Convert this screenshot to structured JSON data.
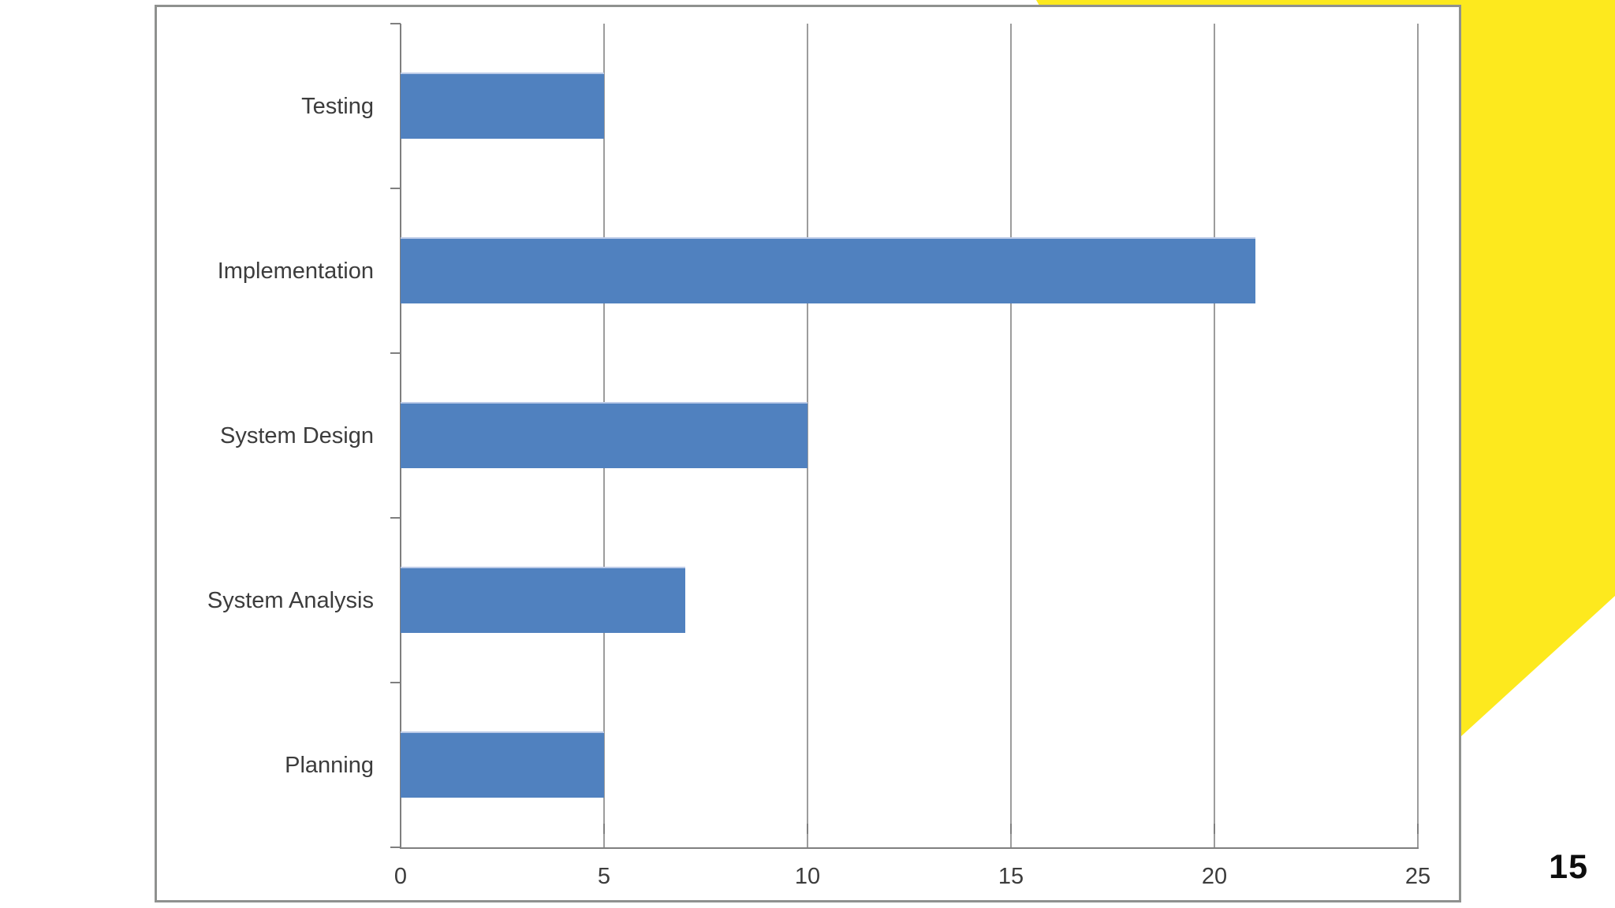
{
  "page": {
    "page_number": "15"
  },
  "colors": {
    "bar_fill": "#5081bf",
    "bar_edge_highlight": "#bccbe8",
    "decor_yellow": "#fde91e",
    "gridline_gray": "#9c9c9c",
    "axis_gray": "#7f7f7f",
    "frame_gray": "#8f918f",
    "label_text": "#3c3c3c"
  },
  "chart_data": {
    "type": "bar",
    "orientation": "horizontal",
    "title": "",
    "xlabel": "",
    "ylabel": "",
    "categories": [
      "Testing",
      "Implementation",
      "System Design",
      "System Analysis",
      "Planning"
    ],
    "values": [
      5,
      21,
      10,
      7,
      5
    ],
    "xlim": [
      0,
      25
    ],
    "xticks": [
      0,
      5,
      10,
      15,
      20,
      25
    ],
    "grid": true,
    "legend": false
  }
}
